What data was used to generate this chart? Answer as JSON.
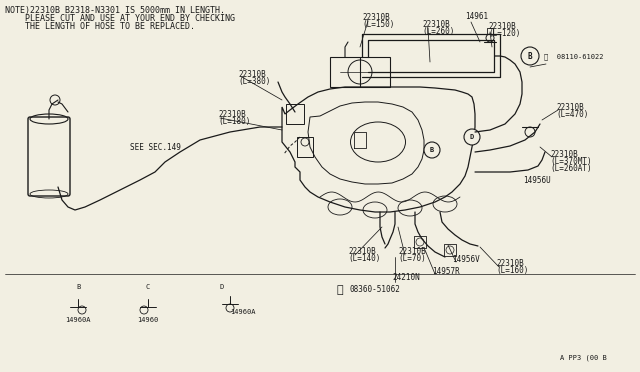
{
  "bg_color": "#f2efe2",
  "line_color": "#1a1a1a",
  "text_color": "#1a1a1a",
  "note_lines": [
    "NOTE)22310B B2318-N3301 IS 5000mm IN LENGTH.",
    "    PLEASE CUT AND USE AT YOUR END BY CHECKING",
    "    THE LENGTH OF HOSE TO BE REPLACED."
  ],
  "font_size_note": 6.0,
  "font_size_label": 5.5,
  "font_size_small": 5.0,
  "watermark": "A PP3 (00 B"
}
